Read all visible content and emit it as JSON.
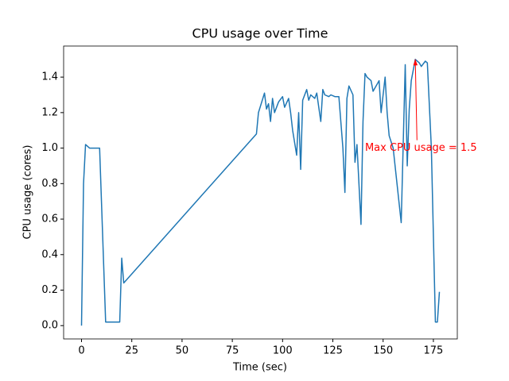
{
  "chart_data": {
    "type": "line",
    "title": "CPU usage over Time",
    "xlabel": "Time (sec)",
    "ylabel": "CPU usage (cores)",
    "x": [
      0,
      1,
      2,
      4,
      9,
      12,
      19,
      20,
      21,
      87,
      88,
      91,
      92,
      93,
      94,
      95,
      96,
      98,
      100,
      101,
      103,
      104,
      105,
      107,
      108,
      109,
      110,
      112,
      113,
      114,
      116,
      117,
      119,
      120,
      121,
      123,
      124,
      126,
      128,
      130,
      131,
      132,
      133,
      135,
      136,
      137,
      139,
      140,
      141,
      142,
      144,
      145,
      147,
      148,
      149,
      151,
      152,
      153,
      155,
      159,
      161,
      162,
      163,
      164,
      166,
      168,
      169,
      171,
      172,
      174,
      176,
      177,
      178
    ],
    "series": [
      {
        "name": "CPU usage",
        "color": "#1f77b4",
        "values": [
          0,
          0.8,
          1.02,
          1.0,
          1.0,
          0.02,
          0.02,
          0.38,
          0.24,
          1.08,
          1.2,
          1.31,
          1.22,
          1.25,
          1.15,
          1.28,
          1.2,
          1.26,
          1.29,
          1.23,
          1.28,
          1.2,
          1.1,
          0.96,
          1.2,
          0.88,
          1.27,
          1.33,
          1.27,
          1.3,
          1.28,
          1.31,
          1.15,
          1.33,
          1.3,
          1.29,
          1.3,
          1.29,
          1.29,
          1.0,
          0.75,
          1.28,
          1.35,
          1.3,
          0.92,
          1.02,
          0.57,
          1.15,
          1.42,
          1.4,
          1.38,
          1.32,
          1.36,
          1.38,
          1.2,
          1.4,
          1.2,
          1.07,
          1.0,
          0.58,
          1.47,
          0.9,
          1.22,
          1.38,
          1.5,
          1.48,
          1.46,
          1.49,
          1.48,
          1.0,
          0.02,
          0.02,
          0.19
        ]
      }
    ],
    "xlim": [
      -8.9,
      186.9
    ],
    "ylim": [
      -0.075,
      1.575
    ],
    "xticks": [
      0,
      25,
      50,
      75,
      100,
      125,
      150,
      175
    ],
    "yticks": [
      {
        "value": 0,
        "label": "0.0"
      },
      0.2,
      0.4,
      0.6,
      0.8,
      {
        "value": 1,
        "label": "1.0"
      },
      1.2,
      1.4
    ],
    "annotation": {
      "text": "Max CPU usage = 1.5",
      "xy": [
        166,
        1.5
      ],
      "xytext": [
        141,
        1.0
      ],
      "color": "red"
    }
  }
}
